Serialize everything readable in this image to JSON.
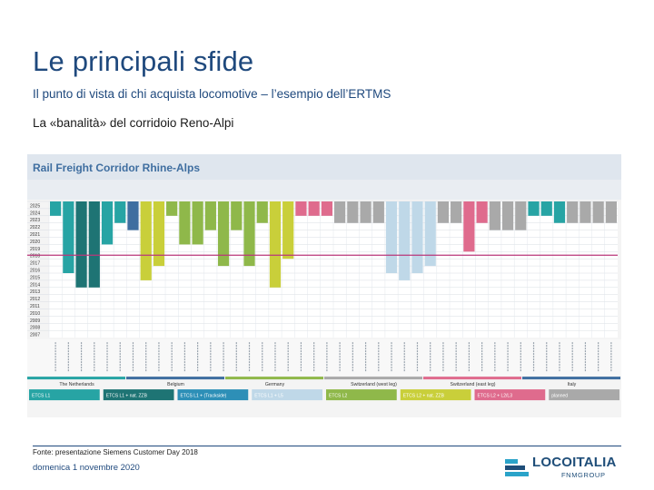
{
  "slide": {
    "title": "Le principali sfide",
    "subtitle": "Il punto di vista di chi acquista locomotive – l’esempio dell’ERTMS",
    "section_heading": "La «banalità» del corridoio Reno-Alpi",
    "source_note": "Fonte: presentazione Siemens Customer Day 2018",
    "date": "domenica 1 novembre 2020"
  },
  "corridor_figure": {
    "title": "Rail Freight Corridor Rhine-Alps",
    "years": [
      "2025",
      "2024",
      "2023",
      "2022",
      "2021",
      "2020",
      "2019",
      "2018",
      "2017",
      "2016",
      "2015",
      "2014",
      "2013",
      "2012",
      "2011",
      "2010",
      "2009",
      "2008",
      "2007"
    ],
    "highlight_year": "2018",
    "colors": {
      "etcs1": "#27a4a4",
      "etcs1_nat": "#1e7474",
      "etcs1_ls": "#2d8fb7",
      "etcs1_l5": "#bfd8e8",
      "etcs2": "#8fb84a",
      "etcs2_nat": "#c9cf3a",
      "etcs2_baseline": "#df6b8d",
      "planned": "#a9a9a9",
      "header": "#3f6ea0",
      "year_line": "#b9377a"
    },
    "country_groups": [
      {
        "name": "The Netherlands",
        "color": "#27a4a4"
      },
      {
        "name": "Belgium",
        "color": "#3f6ea0"
      },
      {
        "name": "Germany",
        "color": "#8fb84a"
      },
      {
        "name": "Switzerland (west leg)",
        "color": "#a9a9a9"
      },
      {
        "name": "Switzerland (east leg)",
        "color": "#df6b8d"
      },
      {
        "name": "Italy",
        "color": "#3f6ea0"
      }
    ],
    "legend": [
      {
        "label": "ETCS L1",
        "color": "#27a4a4"
      },
      {
        "label": "ETCS L1 + nat. ZZB",
        "color": "#1e7474"
      },
      {
        "label": "ETCS L1 + (Trackside)",
        "color": "#2d8fb7"
      },
      {
        "label": "ETCS L1 + L5",
        "color": "#bfd8e8"
      },
      {
        "label": "ETCS L2",
        "color": "#8fb84a"
      },
      {
        "label": "ETCS L2 + nat. ZZB",
        "color": "#c9cf3a"
      },
      {
        "label": "ETCS L2 + L2/L3",
        "color": "#df6b8d"
      },
      {
        "label": "planned",
        "color": "#a9a9a9"
      }
    ],
    "sections": [
      {
        "color": "#27a4a4",
        "years_active": 2
      },
      {
        "color": "#27a4a4",
        "years_active": 10
      },
      {
        "color": "#1e7474",
        "years_active": 12
      },
      {
        "color": "#1e7474",
        "years_active": 12
      },
      {
        "color": "#27a4a4",
        "years_active": 6
      },
      {
        "color": "#27a4a4",
        "years_active": 3
      },
      {
        "color": "#3f6ea0",
        "years_active": 4
      },
      {
        "color": "#c9cf3a",
        "years_active": 11
      },
      {
        "color": "#c9cf3a",
        "years_active": 9
      },
      {
        "color": "#8fb84a",
        "years_active": 2
      },
      {
        "color": "#8fb84a",
        "years_active": 6
      },
      {
        "color": "#8fb84a",
        "years_active": 6
      },
      {
        "color": "#8fb84a",
        "years_active": 4
      },
      {
        "color": "#8fb84a",
        "years_active": 9
      },
      {
        "color": "#8fb84a",
        "years_active": 4
      },
      {
        "color": "#8fb84a",
        "years_active": 9
      },
      {
        "color": "#8fb84a",
        "years_active": 3
      },
      {
        "color": "#c9cf3a",
        "years_active": 12
      },
      {
        "color": "#c9cf3a",
        "years_active": 8
      },
      {
        "color": "#df6b8d",
        "years_active": 2
      },
      {
        "color": "#df6b8d",
        "years_active": 2
      },
      {
        "color": "#df6b8d",
        "years_active": 2
      },
      {
        "color": "#a9a9a9",
        "years_active": 3
      },
      {
        "color": "#a9a9a9",
        "years_active": 3
      },
      {
        "color": "#a9a9a9",
        "years_active": 3
      },
      {
        "color": "#a9a9a9",
        "years_active": 3
      },
      {
        "color": "#bfd8e8",
        "years_active": 10
      },
      {
        "color": "#bfd8e8",
        "years_active": 11
      },
      {
        "color": "#bfd8e8",
        "years_active": 10
      },
      {
        "color": "#bfd8e8",
        "years_active": 9
      },
      {
        "color": "#a9a9a9",
        "years_active": 3
      },
      {
        "color": "#a9a9a9",
        "years_active": 3
      },
      {
        "color": "#df6b8d",
        "years_active": 7
      },
      {
        "color": "#df6b8d",
        "years_active": 3
      },
      {
        "color": "#a9a9a9",
        "years_active": 4
      },
      {
        "color": "#a9a9a9",
        "years_active": 4
      },
      {
        "color": "#a9a9a9",
        "years_active": 4
      },
      {
        "color": "#27a4a4",
        "years_active": 2
      },
      {
        "color": "#27a4a4",
        "years_active": 2
      },
      {
        "color": "#27a4a4",
        "years_active": 3
      },
      {
        "color": "#a9a9a9",
        "years_active": 3
      },
      {
        "color": "#a9a9a9",
        "years_active": 3
      },
      {
        "color": "#a9a9a9",
        "years_active": 3
      },
      {
        "color": "#a9a9a9",
        "years_active": 3
      }
    ]
  },
  "logo": {
    "name": "LOCOITALIA",
    "group": "FNMGROUP",
    "color": "#1f4e79",
    "accent": "#2aa3c9"
  }
}
